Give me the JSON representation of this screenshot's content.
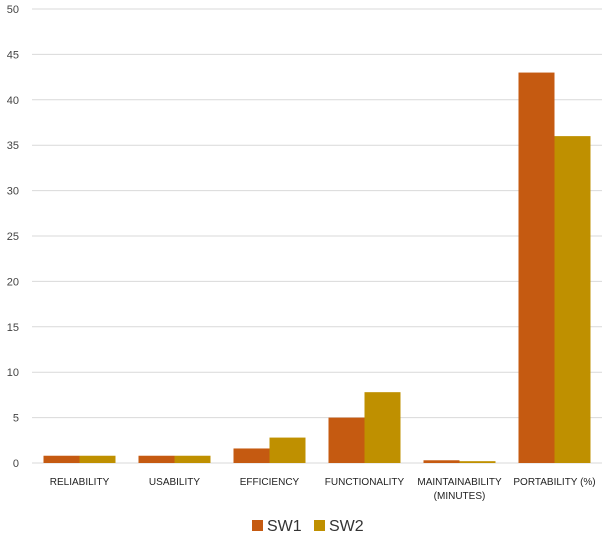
{
  "chart_data": {
    "type": "bar",
    "categories": [
      [
        "RELIABILITY"
      ],
      [
        "USABILITY"
      ],
      [
        "EFFICIENCY"
      ],
      [
        "FUNCTIONALITY"
      ],
      [
        "MAINTAINABILITY",
        "(MINUTES)"
      ],
      [
        "PORTABILITY (%)"
      ]
    ],
    "series": [
      {
        "name": "SW1",
        "color": "#C55A11",
        "values": [
          0.8,
          0.8,
          1.6,
          5.0,
          0.3,
          43.0
        ]
      },
      {
        "name": "SW2",
        "color": "#BF9000",
        "values": [
          0.8,
          0.8,
          2.8,
          7.8,
          0.2,
          36.0
        ]
      }
    ],
    "ylim": [
      0,
      50
    ],
    "yticks": [
      0,
      5,
      10,
      15,
      20,
      25,
      30,
      35,
      40,
      45,
      50
    ],
    "grid": true,
    "legend": "bottom",
    "title": "",
    "xlabel": "",
    "ylabel": ""
  }
}
